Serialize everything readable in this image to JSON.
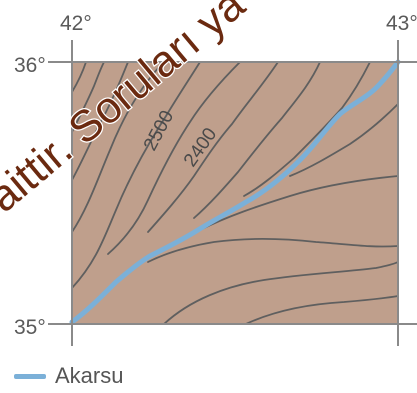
{
  "map": {
    "colors": {
      "terrain": "#bf9f8c",
      "river": "#7bb0d8",
      "frame": "#8a8a8a",
      "contour": "#5f5f5f",
      "watermark": "#6b2a10"
    },
    "longitudes": {
      "left": "42°",
      "right": "43°"
    },
    "latitudes": {
      "top": "36°",
      "bottom": "35°"
    },
    "contour_labels": [
      "2500",
      "2400"
    ],
    "legend": {
      "river_label": "Akarsu"
    },
    "watermark": "aittir. Soruları ya kuruluş tarafı"
  }
}
